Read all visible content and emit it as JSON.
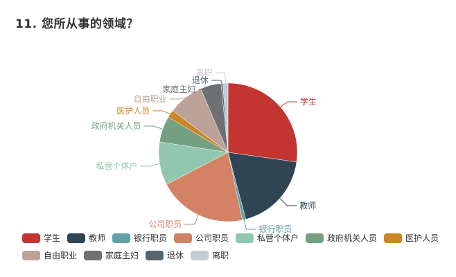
{
  "question": {
    "title": "11. 您所从事的领域？"
  },
  "chart_data": {
    "type": "pie",
    "title": "11. 您所从事的领域？",
    "legend_position": "bottom",
    "series": [
      {
        "name": "学生",
        "value": 27.0,
        "color": "#c23531"
      },
      {
        "name": "教师",
        "value": 18.5,
        "color": "#2f4554"
      },
      {
        "name": "银行职员",
        "value": 0.8,
        "color": "#61a0a8"
      },
      {
        "name": "公司职员",
        "value": 20.5,
        "color": "#d48265"
      },
      {
        "name": "私营个体户",
        "value": 10.0,
        "color": "#91c7ae"
      },
      {
        "name": "政府机关人员",
        "value": 6.0,
        "color": "#749f83"
      },
      {
        "name": "医护人员",
        "value": 1.8,
        "color": "#ca8622"
      },
      {
        "name": "自由职业",
        "value": 8.2,
        "color": "#bda29a"
      },
      {
        "name": "家庭主妇",
        "value": 4.8,
        "color": "#6e7074"
      },
      {
        "name": "退休",
        "value": 0.4,
        "color": "#546570"
      },
      {
        "name": "离职",
        "value": 1.2,
        "color": "#c4ccd3"
      }
    ]
  }
}
